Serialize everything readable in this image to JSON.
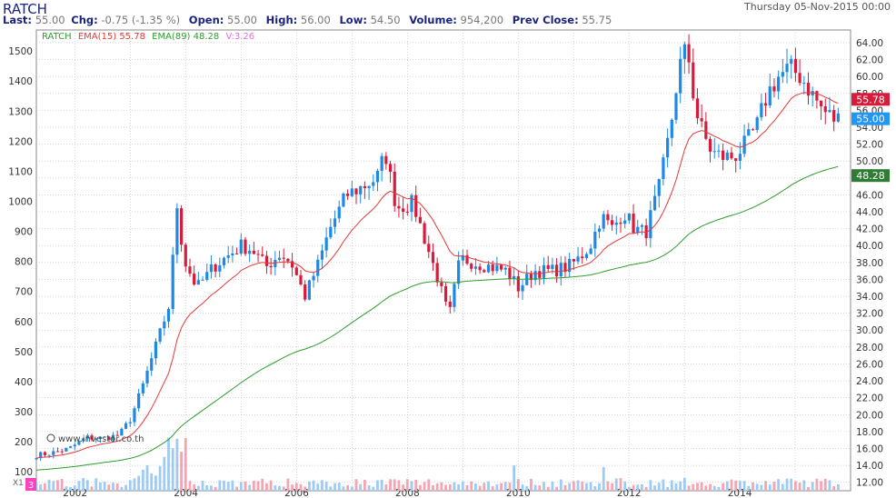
{
  "symbol": "RATCH",
  "header": {
    "last_label": "Last:",
    "last_value": "55.00",
    "chg_label": "Chg:",
    "chg_value": "-0.75 (-1.35 %)",
    "open_label": "Open:",
    "open_value": "55.00",
    "high_label": "High:",
    "high_value": "56.00",
    "low_label": "Low:",
    "low_value": "54.50",
    "volume_label": "Volume:",
    "volume_value": "954,200",
    "prev_label": "Prev Close:",
    "prev_value": "55.75",
    "date": "Thursday 05-Nov-2015 00:00"
  },
  "legend": {
    "symbol": "RATCH",
    "ema15": "EMA(15) 55.78",
    "ema89": "EMA(89) 48.28",
    "vol": "V:3.26"
  },
  "badges": {
    "ema15": "55.78",
    "last": "55.00",
    "ema89": "48.28"
  },
  "watermark": "www.investor.co.th",
  "volume_pane_label": "X1",
  "volume_pane_value": "3",
  "colors": {
    "up": "#1e88e5",
    "down": "#d81b3a",
    "ema15": "#e53935",
    "ema89": "#2e9d2e",
    "grid": "#bdbdbd",
    "axis_text": "#333333",
    "header_label": "#1a237e",
    "header_value": "#777777"
  },
  "chart_data": {
    "type": "candlestick",
    "x_ticks": [
      "2002",
      "2004",
      "2006",
      "2008",
      "2010",
      "2012",
      "2014"
    ],
    "y_left_ticks": [
      100,
      200,
      300,
      400,
      500,
      600,
      700,
      800,
      900,
      1000,
      1100,
      1200,
      1300,
      1400,
      1500
    ],
    "y_right_ticks": [
      "12.00",
      "14.00",
      "16.00",
      "18.00",
      "20.00",
      "22.00",
      "24.00",
      "26.00",
      "28.00",
      "30.00",
      "32.00",
      "34.00",
      "36.00",
      "38.00",
      "40.00",
      "42.00",
      "44.00",
      "46.00",
      "48.00",
      "50.00",
      "52.00",
      "54.00",
      "56.00",
      "58.00",
      "60.00",
      "62.00",
      "64.00"
    ],
    "ylim_right": [
      11.0,
      65.5
    ],
    "ylim_left": [
      37,
      1570
    ],
    "ema15_last": 55.78,
    "ema89_last": 48.28,
    "last_close": 55.0,
    "price_waypoints": [
      [
        2001.3,
        15.2
      ],
      [
        2001.6,
        15.5
      ],
      [
        2001.9,
        16.0
      ],
      [
        2002.2,
        17.3
      ],
      [
        2002.5,
        17.2
      ],
      [
        2002.8,
        17.6
      ],
      [
        2003.0,
        19.5
      ],
      [
        2003.2,
        23.0
      ],
      [
        2003.4,
        27.0
      ],
      [
        2003.55,
        30.0
      ],
      [
        2003.7,
        33.0
      ],
      [
        2003.85,
        45.5
      ],
      [
        2003.95,
        38.5
      ],
      [
        2004.2,
        35.0
      ],
      [
        2004.5,
        37.5
      ],
      [
        2004.8,
        39.0
      ],
      [
        2005.0,
        40.0
      ],
      [
        2005.2,
        39.5
      ],
      [
        2005.45,
        37.5
      ],
      [
        2005.7,
        39.0
      ],
      [
        2005.9,
        38.0
      ],
      [
        2006.15,
        34.0
      ],
      [
        2006.4,
        38.0
      ],
      [
        2006.6,
        42.0
      ],
      [
        2006.9,
        46.0
      ],
      [
        2007.2,
        47.0
      ],
      [
        2007.45,
        48.0
      ],
      [
        2007.6,
        51.0
      ],
      [
        2007.8,
        44.5
      ],
      [
        2008.1,
        45.0
      ],
      [
        2008.3,
        41.0
      ],
      [
        2008.55,
        36.0
      ],
      [
        2008.75,
        31.5
      ],
      [
        2008.95,
        38.5
      ],
      [
        2009.2,
        38.0
      ],
      [
        2009.5,
        37.5
      ],
      [
        2009.8,
        37.0
      ],
      [
        2010.0,
        35.0
      ],
      [
        2010.3,
        37.0
      ],
      [
        2010.6,
        37.0
      ],
      [
        2010.9,
        37.5
      ],
      [
        2011.1,
        38.5
      ],
      [
        2011.3,
        40.0
      ],
      [
        2011.5,
        43.5
      ],
      [
        2011.7,
        42.0
      ],
      [
        2011.9,
        44.0
      ],
      [
        2012.1,
        42.0
      ],
      [
        2012.3,
        41.5
      ],
      [
        2012.55,
        47.0
      ],
      [
        2012.75,
        54.0
      ],
      [
        2012.9,
        61.0
      ],
      [
        2013.05,
        63.5
      ],
      [
        2013.2,
        56.0
      ],
      [
        2013.35,
        53.0
      ],
      [
        2013.5,
        51.0
      ],
      [
        2013.7,
        50.5
      ],
      [
        2013.9,
        50.5
      ],
      [
        2014.1,
        52.0
      ],
      [
        2014.3,
        54.0
      ],
      [
        2014.5,
        58.0
      ],
      [
        2014.7,
        60.0
      ],
      [
        2014.9,
        61.0
      ],
      [
        2015.1,
        60.0
      ],
      [
        2015.3,
        58.0
      ],
      [
        2015.5,
        56.0
      ],
      [
        2015.7,
        55.0
      ],
      [
        2015.85,
        55.0
      ]
    ],
    "notes": "Weekly candlestick price series with EMA(15) and EMA(89) overlays and a volume histogram along the bottom."
  }
}
